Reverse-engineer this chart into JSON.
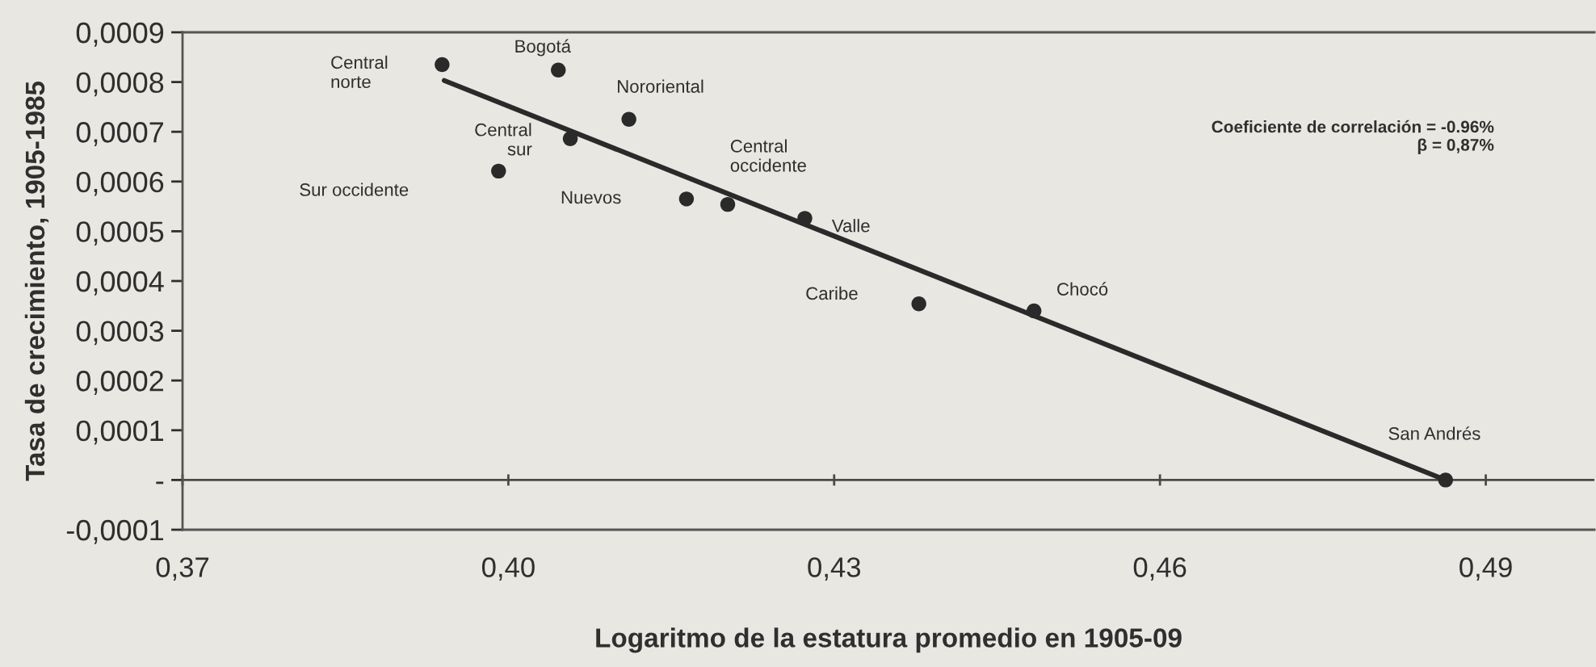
{
  "chart_data": {
    "type": "scatter",
    "xlabel": "Logaritmo de la estatura promedio en 1905-09",
    "ylabel": "Tasa de crecimiento, 1905-1985",
    "series": [
      {
        "color": "#2a2a2a",
        "marker": "circle",
        "x": [
          0.3939,
          0.4046,
          0.4111,
          0.4057,
          0.3991,
          0.4164,
          0.4202,
          0.4273,
          0.4378,
          0.4484,
          0.4863
        ],
        "values": [
          0.000835,
          0.000824,
          0.000725,
          0.000686,
          0.000621,
          0.000565,
          0.000554,
          0.000526,
          0.000354,
          0.00034,
          0.0
        ]
      },
      {
        "type": "line",
        "color": "#2a2a2a",
        "x": [
          0.3941,
          0.4863
        ],
        "values": [
          0.000803,
          0.0
        ]
      }
    ],
    "xlim": [
      0.37,
      0.5
    ],
    "ylim": [
      -0.0001,
      0.0009
    ],
    "xticks": [
      {
        "value": 0.37,
        "label": "0,37"
      },
      {
        "value": 0.4,
        "label": "0,40"
      },
      {
        "value": 0.43,
        "label": "0,43"
      },
      {
        "value": 0.46,
        "label": "0,46"
      },
      {
        "value": 0.49,
        "label": "0,49"
      }
    ],
    "yticks": [
      {
        "value": -0.0001,
        "label": "-0,0001"
      },
      {
        "value": 0,
        "label": "-"
      },
      {
        "value": 0.0001,
        "label": "0,0001"
      },
      {
        "value": 0.0002,
        "label": "0,0002"
      },
      {
        "value": 0.0003,
        "label": "0,0003"
      },
      {
        "value": 0.0004,
        "label": "0,0004"
      },
      {
        "value": 0.0005,
        "label": "0,0005"
      },
      {
        "value": 0.0006,
        "label": "0,0006"
      },
      {
        "value": 0.0007,
        "label": "0,0007"
      },
      {
        "value": 0.0008,
        "label": "0,0008"
      },
      {
        "value": 0.0009,
        "label": "0,0009"
      }
    ],
    "ref_lines": [
      {
        "axis": "y",
        "value": 0,
        "color": "#4a4a4a"
      }
    ],
    "annotations": [
      "Central\nnorte",
      "Bogotá",
      "Nororiental",
      "Central\nsur",
      "Sur occidente",
      "Nuevos",
      "Central\noccidente",
      "Valle",
      "Caribe",
      "Chocó",
      "San Andrés",
      "Coeficiente de correlación = -0.96%\nβ = 0,87%"
    ]
  }
}
